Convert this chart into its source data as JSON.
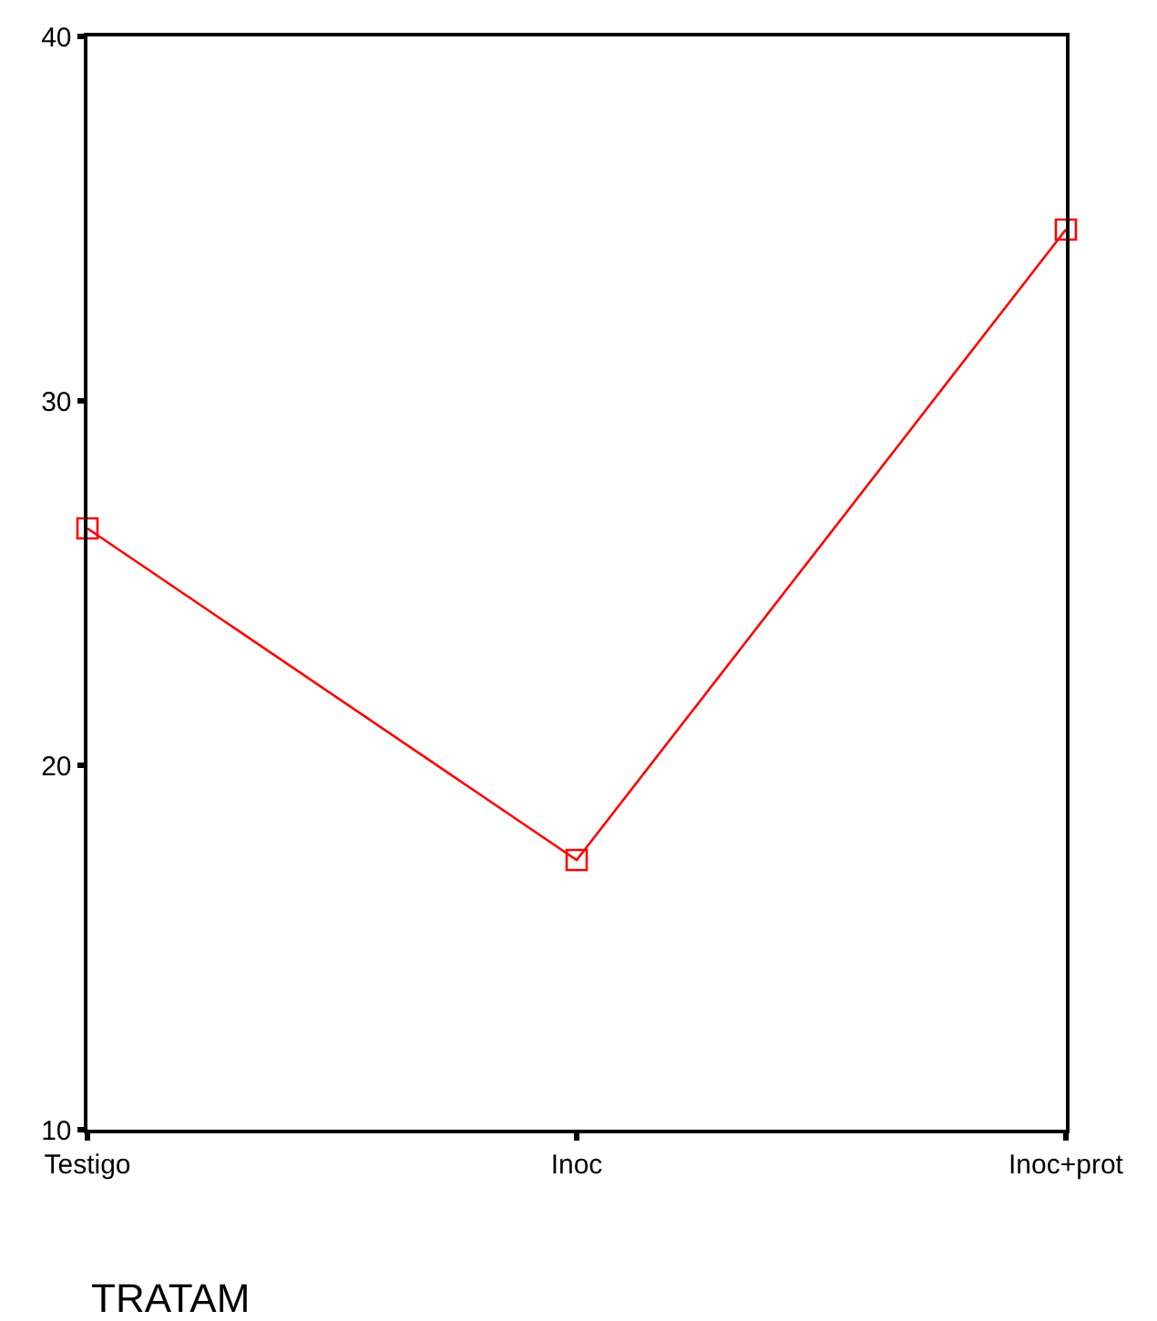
{
  "chart_data": {
    "type": "line",
    "xlabel": "TRATAM",
    "categories": [
      "Testigo",
      "Inoc",
      "Inoc+prot"
    ],
    "series": [
      {
        "color": "#ff0000",
        "values": [
          26.5,
          17.4,
          34.7
        ]
      }
    ],
    "ylim": [
      10,
      40
    ],
    "yticks": [
      10,
      20,
      30,
      40
    ],
    "legend": false,
    "marker": "square",
    "line_style": "solid"
  }
}
